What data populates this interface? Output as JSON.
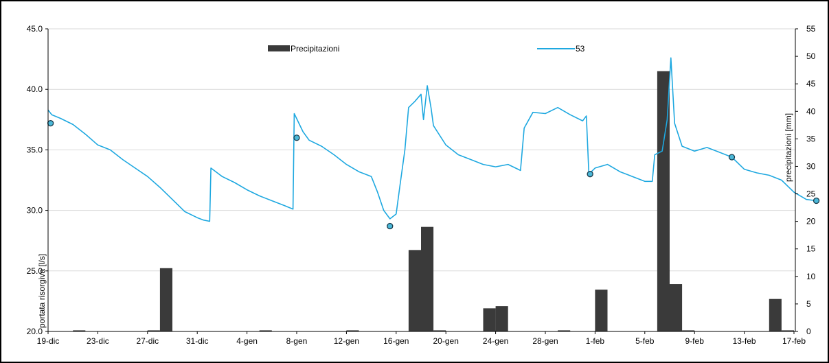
{
  "chart_data": {
    "type": "bar+line",
    "legend": {
      "placement": "top-center",
      "entries": [
        {
          "key": "precip",
          "label": "Precipitazioni",
          "color": "#3a3a3a",
          "kind": "bar"
        },
        {
          "key": "flow",
          "label": "53",
          "color": "#1ea8e0",
          "kind": "line"
        }
      ]
    },
    "y_left": {
      "label": "portata risorgiva [l/s]",
      "min": 20,
      "max": 45,
      "ticks": [
        "20.0",
        "25.0",
        "30.0",
        "35.0",
        "40.0",
        "45.0"
      ]
    },
    "y_right": {
      "label": "precipitazioni [mm]",
      "min": 0,
      "max": 55,
      "ticks": [
        "0",
        "5",
        "10",
        "15",
        "20",
        "25",
        "30",
        "35",
        "40",
        "45",
        "50",
        "55"
      ]
    },
    "x": {
      "start": "19-dic",
      "end": "20-feb",
      "tick_labels": [
        "19-dic",
        "23-dic",
        "27-dic",
        "31-dic",
        "4-gen",
        "8-gen",
        "12-gen",
        "16-gen",
        "20-gen",
        "24-gen",
        "28-gen",
        "1-feb",
        "5-feb",
        "9-feb",
        "13-feb",
        "17-feb"
      ],
      "tick_interval_days": 4
    },
    "grid": true,
    "precipitazioni_mm": [
      {
        "day": 2,
        "value": 0.2
      },
      {
        "day": 8,
        "value": 0.2
      },
      {
        "day": 9,
        "value": 11.5
      },
      {
        "day": 17,
        "value": 0.2
      },
      {
        "day": 24,
        "value": 0.2
      },
      {
        "day": 29,
        "value": 14.8
      },
      {
        "day": 30,
        "value": 19.0
      },
      {
        "day": 31,
        "value": 0.2
      },
      {
        "day": 35,
        "value": 4.2
      },
      {
        "day": 36,
        "value": 4.6
      },
      {
        "day": 41,
        "value": 0.2
      },
      {
        "day": 44,
        "value": 7.6
      },
      {
        "day": 49,
        "value": 47.3
      },
      {
        "day": 50,
        "value": 8.6
      },
      {
        "day": 51,
        "value": 0.2
      },
      {
        "day": 58,
        "value": 5.9
      },
      {
        "day": 59,
        "value": 0.2
      }
    ],
    "series_53_l_s": [
      [
        0.0,
        38.3
      ],
      [
        0.3,
        37.9
      ],
      [
        1.0,
        37.6
      ],
      [
        2.0,
        37.1
      ],
      [
        3.0,
        36.3
      ],
      [
        4.0,
        35.4
      ],
      [
        5.0,
        35.0
      ],
      [
        6.0,
        34.2
      ],
      [
        7.0,
        33.5
      ],
      [
        8.0,
        32.8
      ],
      [
        9.0,
        31.9
      ],
      [
        10.0,
        30.9
      ],
      [
        11.0,
        29.9
      ],
      [
        12.0,
        29.4
      ],
      [
        12.5,
        29.2
      ],
      [
        13.0,
        29.1
      ],
      [
        13.1,
        33.5
      ],
      [
        14.0,
        32.8
      ],
      [
        15.0,
        32.3
      ],
      [
        16.0,
        31.7
      ],
      [
        17.0,
        31.2
      ],
      [
        18.0,
        30.8
      ],
      [
        19.0,
        30.4
      ],
      [
        19.7,
        30.1
      ],
      [
        19.8,
        38.0
      ],
      [
        20.5,
        36.5
      ],
      [
        21.0,
        35.8
      ],
      [
        22.0,
        35.3
      ],
      [
        23.0,
        34.6
      ],
      [
        24.0,
        33.8
      ],
      [
        25.0,
        33.2
      ],
      [
        26.0,
        32.8
      ],
      [
        26.5,
        31.5
      ],
      [
        27.0,
        30.0
      ],
      [
        27.5,
        29.3
      ],
      [
        28.0,
        29.7
      ],
      [
        28.3,
        32.0
      ],
      [
        28.7,
        35.0
      ],
      [
        29.0,
        38.5
      ],
      [
        29.5,
        39.0
      ],
      [
        30.0,
        39.6
      ],
      [
        30.2,
        37.5
      ],
      [
        30.5,
        40.3
      ],
      [
        30.8,
        38.5
      ],
      [
        31.0,
        37.0
      ],
      [
        32.0,
        35.4
      ],
      [
        33.0,
        34.6
      ],
      [
        34.0,
        34.2
      ],
      [
        35.0,
        33.8
      ],
      [
        36.0,
        33.6
      ],
      [
        37.0,
        33.8
      ],
      [
        38.0,
        33.3
      ],
      [
        38.3,
        36.8
      ],
      [
        39.0,
        38.1
      ],
      [
        40.0,
        38.0
      ],
      [
        41.0,
        38.5
      ],
      [
        42.0,
        37.9
      ],
      [
        43.0,
        37.4
      ],
      [
        43.3,
        37.8
      ],
      [
        43.5,
        33.0
      ],
      [
        44.0,
        33.5
      ],
      [
        45.0,
        33.8
      ],
      [
        46.0,
        33.2
      ],
      [
        47.0,
        32.8
      ],
      [
        48.0,
        32.4
      ],
      [
        48.6,
        32.4
      ],
      [
        48.8,
        34.6
      ],
      [
        49.4,
        34.9
      ],
      [
        49.8,
        37.5
      ],
      [
        50.1,
        42.6
      ],
      [
        50.4,
        37.2
      ],
      [
        51.0,
        35.3
      ],
      [
        52.0,
        34.9
      ],
      [
        53.0,
        35.2
      ],
      [
        54.0,
        34.8
      ],
      [
        55.0,
        34.4
      ],
      [
        56.0,
        33.4
      ],
      [
        57.0,
        33.1
      ],
      [
        58.0,
        32.9
      ],
      [
        59.0,
        32.5
      ],
      [
        60.0,
        31.5
      ],
      [
        61.0,
        30.9
      ],
      [
        61.8,
        30.8
      ]
    ],
    "markers_l_s": [
      {
        "day": 0.2,
        "value": 37.2
      },
      {
        "day": 20.0,
        "value": 36.0
      },
      {
        "day": 27.5,
        "value": 28.7
      },
      {
        "day": 43.6,
        "value": 33.0
      },
      {
        "day": 55.0,
        "value": 34.4
      },
      {
        "day": 61.8,
        "value": 30.8
      }
    ]
  }
}
